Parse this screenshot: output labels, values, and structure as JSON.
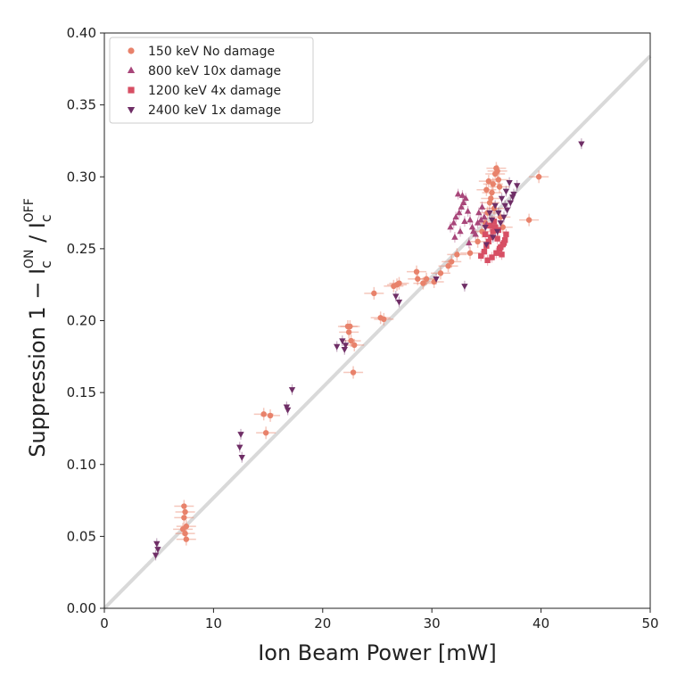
{
  "chart_data": {
    "type": "scatter",
    "xlabel": "Ion Beam Power [mW]",
    "ylabel": "Suppression 1 − I",
    "ylabel_sub": "c",
    "ylabel_sup_on": "ON",
    "ylabel_sup_off": "OFF",
    "xlim": [
      0,
      50
    ],
    "ylim": [
      0,
      0.4
    ],
    "xticks": [
      "0",
      "10",
      "20",
      "30",
      "40",
      "50"
    ],
    "yticks": [
      "0.00",
      "0.05",
      "0.10",
      "0.15",
      "0.20",
      "0.25",
      "0.30",
      "0.35",
      "0.40"
    ],
    "grid": false,
    "legend_position": "upper-left",
    "fit_line": {
      "x": [
        0,
        50
      ],
      "y": [
        0,
        0.384
      ],
      "color": "#d9d9d9"
    },
    "series": [
      {
        "name": "150 keV No damage",
        "marker": "circle",
        "color": "#e8826b",
        "x": [
          7.3,
          7.4,
          7.3,
          7.5,
          7.4,
          7.2,
          7.5,
          14.6,
          15.2,
          14.8,
          22.3,
          22.4,
          22.6,
          22.9,
          22.8,
          22.5,
          25.3,
          25.6,
          24.7,
          26.5,
          26.8,
          27.0,
          28.6,
          28.7,
          29.2,
          29.5,
          30.2,
          30.8,
          31.5,
          31.8,
          32.3,
          33.5,
          34.2,
          34.6,
          34.9,
          35.1,
          35.3,
          35.5,
          35.6,
          35.8,
          35.9,
          36.0,
          36.1,
          36.2,
          35.4,
          35.7,
          36.3,
          36.5,
          38.9,
          39.8,
          35.2,
          35.0
        ],
        "y": [
          0.071,
          0.067,
          0.063,
          0.057,
          0.052,
          0.055,
          0.048,
          0.135,
          0.134,
          0.122,
          0.196,
          0.192,
          0.186,
          0.183,
          0.164,
          0.196,
          0.202,
          0.201,
          0.219,
          0.224,
          0.225,
          0.226,
          0.234,
          0.229,
          0.226,
          0.229,
          0.227,
          0.233,
          0.238,
          0.241,
          0.246,
          0.247,
          0.255,
          0.262,
          0.268,
          0.275,
          0.282,
          0.289,
          0.295,
          0.302,
          0.306,
          0.304,
          0.298,
          0.293,
          0.285,
          0.278,
          0.272,
          0.265,
          0.27,
          0.3,
          0.297,
          0.291
        ]
      },
      {
        "name": "800 keV 10x damage",
        "marker": "triangle-up",
        "color": "#a8467a",
        "x": [
          31.7,
          32.0,
          32.2,
          32.5,
          32.7,
          32.9,
          33.1,
          33.3,
          33.5,
          33.7,
          34.0,
          34.2,
          34.5,
          34.8,
          35.0,
          32.1,
          32.6,
          33.0,
          33.4,
          33.8,
          34.3,
          34.6,
          32.4,
          32.8
        ],
        "y": [
          0.265,
          0.268,
          0.272,
          0.275,
          0.279,
          0.282,
          0.285,
          0.276,
          0.27,
          0.265,
          0.26,
          0.268,
          0.27,
          0.272,
          0.267,
          0.258,
          0.262,
          0.269,
          0.254,
          0.262,
          0.275,
          0.279,
          0.288,
          0.287
        ]
      },
      {
        "name": "1200 keV 4x  damage",
        "marker": "square",
        "color": "#d74f64",
        "x": [
          34.5,
          34.8,
          35.0,
          35.2,
          35.4,
          35.6,
          35.8,
          36.0,
          36.2,
          36.4,
          36.6,
          36.8,
          35.1,
          35.5,
          35.9,
          36.3,
          36.7,
          34.9,
          35.3,
          35.7,
          36.1,
          36.5
        ],
        "y": [
          0.245,
          0.248,
          0.252,
          0.255,
          0.258,
          0.262,
          0.265,
          0.257,
          0.25,
          0.246,
          0.254,
          0.26,
          0.242,
          0.244,
          0.247,
          0.251,
          0.256,
          0.26,
          0.266,
          0.269,
          0.263,
          0.253
        ]
      },
      {
        "name": "2400 keV 1x  damage",
        "marker": "triangle-down",
        "color": "#6f2e66",
        "x": [
          4.8,
          4.9,
          4.7,
          12.5,
          12.4,
          12.6,
          16.7,
          16.8,
          17.2,
          21.3,
          22.0,
          21.8,
          22.1,
          26.7,
          27.0,
          30.4,
          33.0,
          35.0,
          35.6,
          36.0,
          36.3,
          36.6,
          36.9,
          37.2,
          37.5,
          37.8,
          35.3,
          35.8,
          36.4,
          36.8,
          37.1,
          34.9,
          35.5,
          36.1,
          36.7,
          37.4,
          43.7
        ],
        "y": [
          0.045,
          0.041,
          0.037,
          0.121,
          0.112,
          0.105,
          0.14,
          0.138,
          0.152,
          0.182,
          0.18,
          0.186,
          0.183,
          0.217,
          0.213,
          0.229,
          0.224,
          0.253,
          0.258,
          0.262,
          0.268,
          0.272,
          0.277,
          0.282,
          0.288,
          0.294,
          0.275,
          0.28,
          0.285,
          0.29,
          0.296,
          0.265,
          0.27,
          0.275,
          0.28,
          0.286,
          0.323
        ]
      }
    ]
  }
}
